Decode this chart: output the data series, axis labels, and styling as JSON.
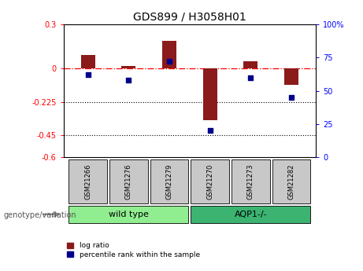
{
  "title": "GDS899 / H3058H01",
  "samples": [
    "GSM21266",
    "GSM21276",
    "GSM21279",
    "GSM21270",
    "GSM21273",
    "GSM21282"
  ],
  "log_ratio": [
    0.09,
    0.02,
    0.19,
    -0.35,
    0.05,
    -0.11
  ],
  "percentile_rank": [
    62,
    58,
    72,
    20,
    60,
    45
  ],
  "bar_color": "#8B1A1A",
  "scatter_color": "#00008B",
  "ylim_left": [
    -0.6,
    0.3
  ],
  "ylim_right": [
    0,
    100
  ],
  "yticks_left": [
    -0.6,
    -0.45,
    -0.225,
    0.0,
    0.3
  ],
  "ytick_labels_left": [
    "-0.6",
    "-0.45",
    "-0.225",
    "0",
    "0.3"
  ],
  "yticks_right": [
    0,
    25,
    50,
    75,
    100
  ],
  "ytick_labels_right": [
    "0",
    "25",
    "50",
    "75",
    "100%"
  ],
  "hline_y": 0.0,
  "dotted_lines": [
    -0.225,
    -0.45
  ],
  "bar_width": 0.35,
  "scatter_size": 18,
  "legend_items": [
    {
      "label": "log ratio",
      "color": "#8B1A1A"
    },
    {
      "label": "percentile rank within the sample",
      "color": "#00008B"
    }
  ],
  "genotype_label": "genotype/variation",
  "wt_label": "wild type",
  "aqp_label": "AQP1-/-",
  "wt_color": "#90EE90",
  "aqp_color": "#3CB371",
  "sample_box_color": "#C8C8C8",
  "background_color": "#ffffff"
}
